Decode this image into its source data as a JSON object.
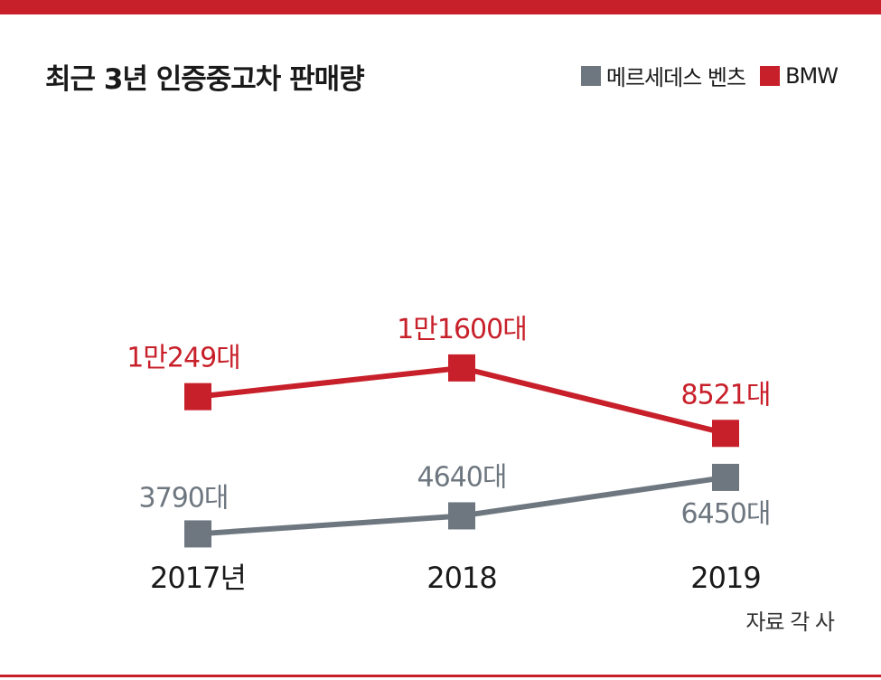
{
  "colors": {
    "accent": "#c8202a",
    "mercedes": "#6e7780",
    "bmw": "#c8202a"
  },
  "title": "최근 3년 인증중고차 판매량",
  "source": "자료 각 사",
  "legend": [
    {
      "label": "메르세데스 벤츠",
      "color": "#6e7780"
    },
    {
      "label": "BMW",
      "color": "#c8202a"
    }
  ],
  "chart_data": {
    "type": "line",
    "title": "최근 3년 인증중고차 판매량",
    "categories": [
      "2017년",
      "2018",
      "2019"
    ],
    "x_tick_labels": [
      "2017년",
      "2018",
      "2019"
    ],
    "grid": false,
    "legend_position": "top-right",
    "series": [
      {
        "name": "메르세데스 벤츠",
        "color": "#6e7780",
        "values": [
          3790,
          4640,
          6450
        ],
        "labels": [
          "3790대",
          "4640대",
          "6450대"
        ]
      },
      {
        "name": "BMW",
        "color": "#c8202a",
        "values": [
          10249,
          11600,
          8521
        ],
        "labels": [
          "1만249대",
          "1만1600대",
          "8521대"
        ]
      }
    ]
  }
}
